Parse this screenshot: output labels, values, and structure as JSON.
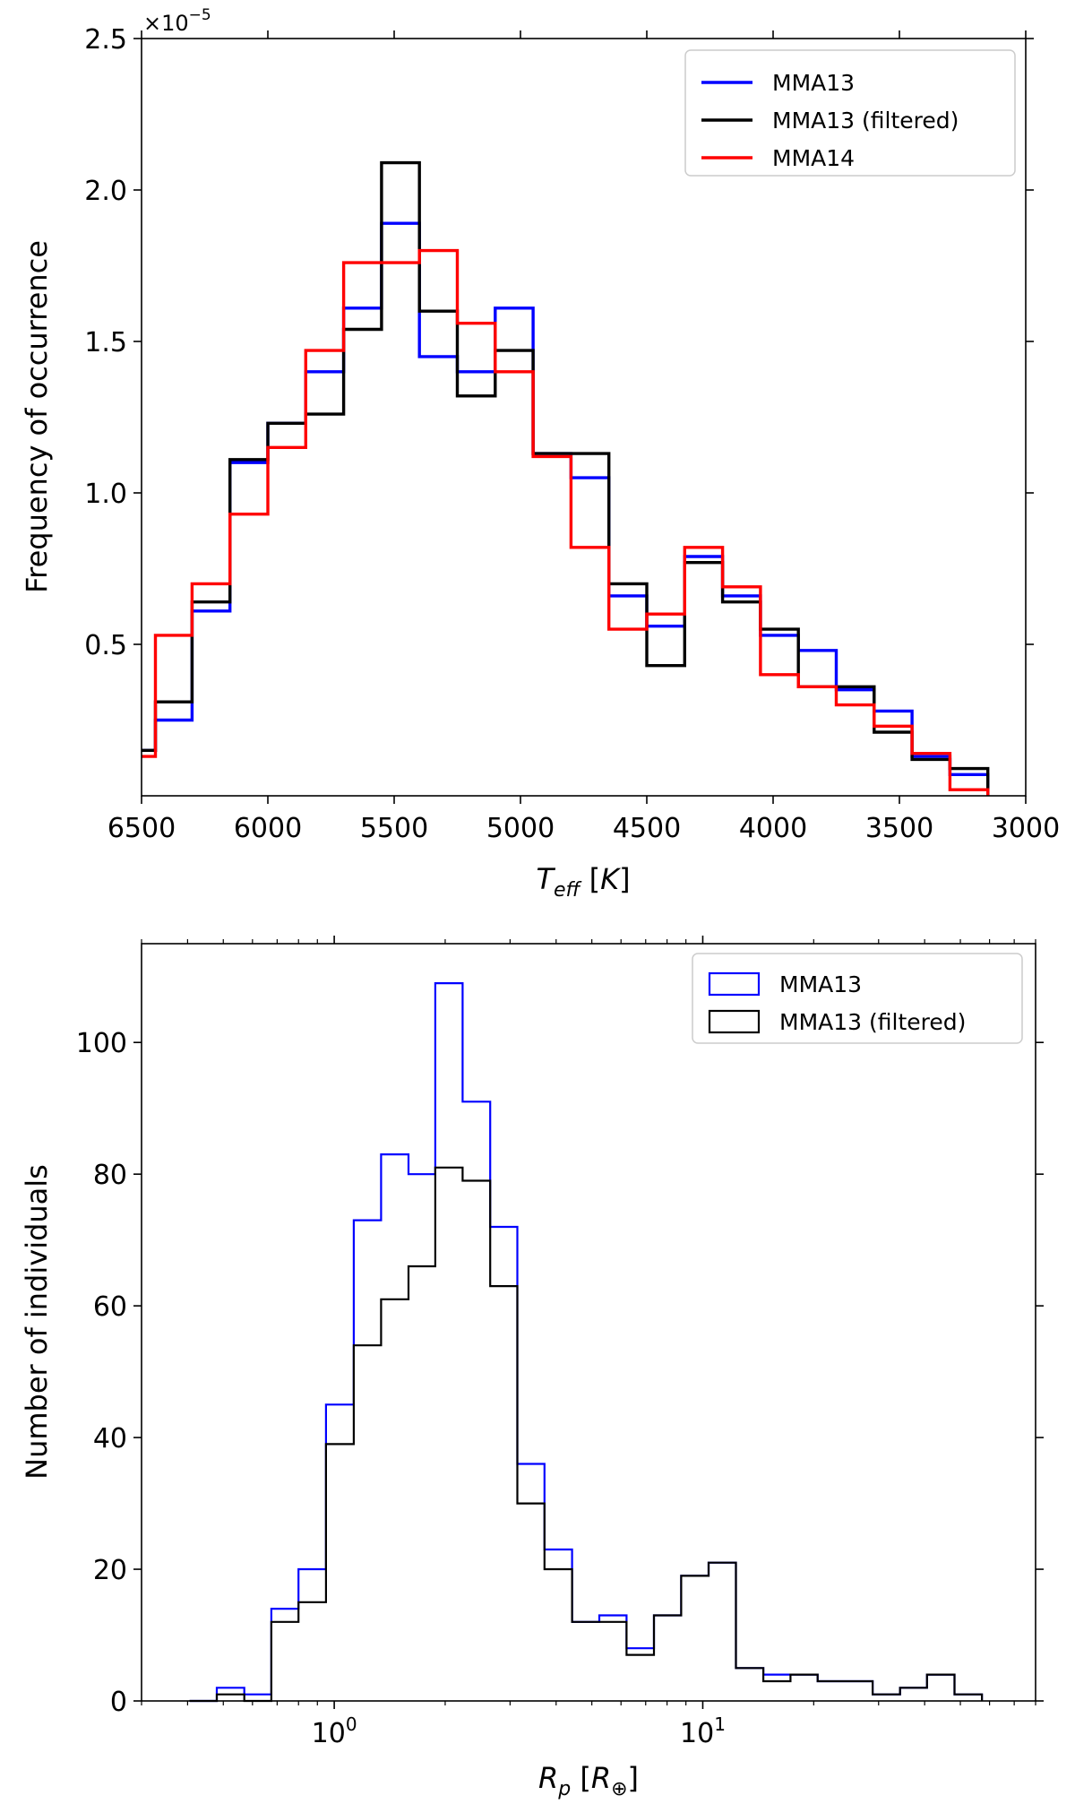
{
  "chart_data": [
    {
      "type": "histogram-step",
      "title": "",
      "xlabel": "T_eff [K]",
      "ylabel": "Frequency of occurrence",
      "x_axis_inverted": true,
      "xlim": [
        6500,
        3000
      ],
      "ylim": [
        0,
        2.5
      ],
      "y_offset_text": "×10",
      "y_offset_exponent": "−5",
      "x_ticks": [
        "6500",
        "6000",
        "5500",
        "5000",
        "4500",
        "4000",
        "3500",
        "3000"
      ],
      "y_ticks": [
        "0.5",
        "1.0",
        "1.5",
        "2.0",
        "2.5"
      ],
      "legend_position": "top-right",
      "bin_edges": [
        6580,
        6445,
        6300,
        6150,
        6000,
        5850,
        5700,
        5550,
        5400,
        5250,
        5100,
        4950,
        4800,
        4650,
        4500,
        4350,
        4200,
        4050,
        3900,
        3750,
        3600,
        3450,
        3300,
        3150
      ],
      "series": [
        {
          "name": "MMA13",
          "color": "#0000ff",
          "values": [
            0.15,
            0.25,
            0.61,
            1.1,
            1.23,
            1.4,
            1.61,
            1.89,
            1.45,
            1.4,
            1.61,
            1.13,
            1.05,
            0.66,
            0.56,
            0.79,
            0.66,
            0.53,
            0.48,
            0.35,
            0.28,
            0.13,
            0.07
          ]
        },
        {
          "name": "MMA13 (filtered)",
          "color": "#000000",
          "values": [
            0.15,
            0.31,
            0.64,
            1.11,
            1.23,
            1.26,
            1.54,
            2.09,
            1.6,
            1.32,
            1.47,
            1.13,
            1.13,
            0.7,
            0.43,
            0.77,
            0.64,
            0.55,
            0.36,
            0.36,
            0.21,
            0.12,
            0.09
          ]
        },
        {
          "name": "MMA14",
          "color": "#ff0000",
          "values": [
            0.13,
            0.53,
            0.7,
            0.93,
            1.15,
            1.47,
            1.76,
            1.76,
            1.8,
            1.56,
            1.4,
            1.12,
            0.82,
            0.55,
            0.6,
            0.82,
            0.69,
            0.4,
            0.36,
            0.3,
            0.23,
            0.14,
            0.02
          ]
        }
      ]
    },
    {
      "type": "histogram-step",
      "title": "",
      "xlabel": "R_p [R_⊕]",
      "ylabel": "Number of individuals",
      "x_scale": "log",
      "xlim": [
        0.3,
        80
      ],
      "ylim": [
        0,
        115
      ],
      "x_ticks": [
        {
          "base": "10",
          "exp": "0",
          "value": 1
        },
        {
          "base": "10",
          "exp": "1",
          "value": 10
        }
      ],
      "y_ticks": [
        "0",
        "20",
        "40",
        "60",
        "80",
        "100"
      ],
      "legend_position": "top-right",
      "bin_edges": [
        0.405,
        0.48,
        0.57,
        0.675,
        0.8,
        0.95,
        1.13,
        1.34,
        1.59,
        1.88,
        2.23,
        2.65,
        3.14,
        3.72,
        4.42,
        5.24,
        6.21,
        7.37,
        8.74,
        10.37,
        12.3,
        14.6,
        17.3,
        20.5,
        24.3,
        28.9,
        34.3,
        40.6,
        48.2,
        57.2
      ],
      "series": [
        {
          "name": "MMA13",
          "color": "#0000ff",
          "values": [
            0,
            2,
            1,
            14,
            20,
            45,
            73,
            83,
            80,
            109,
            91,
            72,
            36,
            23,
            12,
            13,
            8,
            13,
            19,
            21,
            5,
            4,
            4,
            3,
            3,
            1,
            2,
            4,
            1
          ]
        },
        {
          "name": "MMA13 (filtered)",
          "color": "#000000",
          "values": [
            0,
            1,
            0,
            12,
            15,
            39,
            54,
            61,
            66,
            81,
            79,
            63,
            30,
            20,
            12,
            12,
            7,
            13,
            19,
            21,
            5,
            3,
            4,
            3,
            3,
            1,
            2,
            4,
            1
          ]
        }
      ]
    }
  ]
}
